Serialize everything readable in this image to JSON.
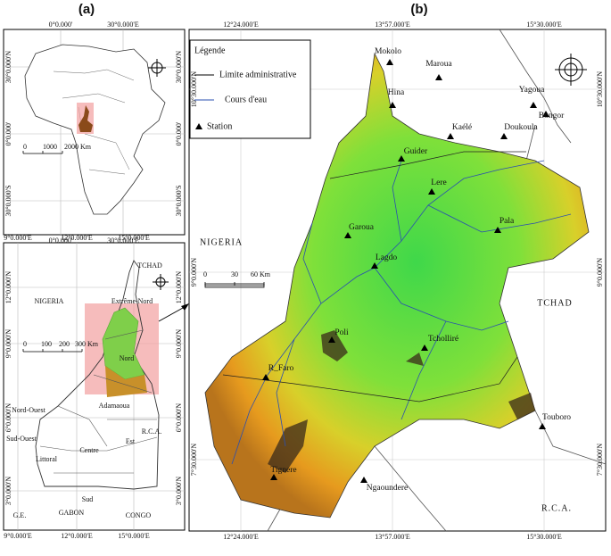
{
  "figure": {
    "panel_labels": [
      "(a)",
      "(b)"
    ]
  },
  "africa": {
    "top_ticks": [
      "0°0.000'",
      "30°0.000'E"
    ],
    "bottom_ticks": [
      "0°0.000'",
      "30°0.000'E"
    ],
    "left_ticks": [
      "30°0.000'N",
      "0°0.000'",
      "30°0.000'S"
    ],
    "right_ticks": [
      "30°0.000'N",
      "0°0.000'",
      "30°0.000'S"
    ],
    "scale": [
      "0",
      "1000",
      "2000 Km"
    ]
  },
  "cameroon": {
    "top_ticks": [
      "9°0.000'E",
      "12°0.000'E",
      "15°0.000'E"
    ],
    "bottom_ticks": [
      "9°0.000'E",
      "12°0.000'E",
      "15°0.000'E"
    ],
    "left_ticks": [
      "12°0.000'N",
      "9°0.000'N",
      "6°0.000'N",
      "3°0.000'N"
    ],
    "right_ticks": [
      "12°0.000'N",
      "9°0.000'N",
      "6°0.000'N",
      "3°0.000'N"
    ],
    "regions": [
      "NIGERIA",
      "TCHAD",
      "Extrême-Nord",
      "Nord",
      "Adamaoua",
      "Nord-Ouest",
      "Sud-Ouest",
      "Littoral",
      "Centre",
      "Est",
      "Sud",
      "R.C.A.",
      "G.E.",
      "GABON",
      "CONGO"
    ],
    "scale": [
      "0",
      "100",
      "200",
      "300 Km"
    ]
  },
  "basin": {
    "top_ticks": [
      "12°24.000'E",
      "13°57.000'E",
      "15°30.000'E"
    ],
    "bottom_ticks": [
      "12°24.000'E",
      "13°57.000'E",
      "15°30.000'E"
    ],
    "left_ticks": [
      "10°30.000'N",
      "9°0.000'N",
      "7°30.000'N"
    ],
    "right_ticks": [
      "10°30.000'N",
      "9°0.000'N",
      "7°30.000'N"
    ],
    "legend": {
      "title": "Légende",
      "items": [
        "Limite administrative",
        "Cours d'eau",
        "Station"
      ]
    },
    "stations": [
      "Mokolo",
      "Maroua",
      "Hina",
      "Yagoua",
      "Bongor",
      "Kaélé",
      "Doukoula",
      "Guider",
      "Lere",
      "Pala",
      "Garoua",
      "Lagdo",
      "Poli",
      "Tcholliré",
      "R_Faro",
      "Touboro",
      "Tignere",
      "Ngaoundere"
    ],
    "countries": [
      "NIGERIA",
      "TCHAD",
      "R.C.A."
    ],
    "scale": [
      "0",
      "30",
      "60 Km"
    ]
  }
}
